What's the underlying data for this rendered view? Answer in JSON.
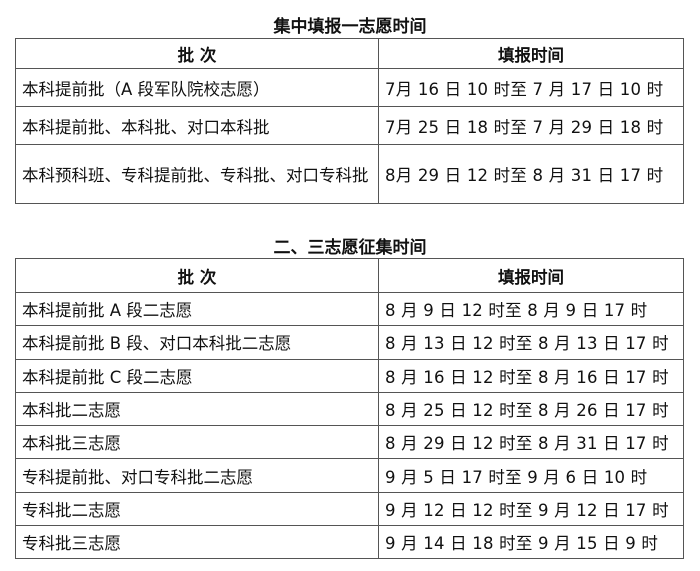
{
  "section1": {
    "title": "集中填报一志愿时间",
    "headers": [
      "批 次",
      "填报时间"
    ],
    "rows": [
      {
        "batch": "本科提前批（A 段军队院校志愿）",
        "time": "7月 16 日 10 时至 7 月 17 日 10 时"
      },
      {
        "batch": "本科提前批、本科批、对口本科批",
        "time": "7月 25 日 18 时至 7 月 29 日 18 时"
      },
      {
        "batch": "本科预科班、专科提前批、专科批、对口专科批",
        "time": "8月 29 日 12 时至 8 月 31 日 17 时"
      }
    ]
  },
  "section2": {
    "title": "二、三志愿征集时间",
    "headers": [
      "批 次",
      "填报时间"
    ],
    "rows": [
      {
        "batch": "本科提前批 A 段二志愿",
        "time": "8 月 9 日 12 时至 8 月 9 日 17 时"
      },
      {
        "batch": "本科提前批 B 段、对口本科批二志愿",
        "time": "8 月 13 日 12 时至 8 月 13 日 17 时"
      },
      {
        "batch": "本科提前批 C 段二志愿",
        "time": "8 月 16 日 12 时至 8 月 16 日 17 时"
      },
      {
        "batch": "本科批二志愿",
        "time": "8 月 25 日 12 时至 8 月 26 日 17 时"
      },
      {
        "batch": "本科批三志愿",
        "time": "8 月 29 日 12 时至 8 月 31 日 17 时"
      },
      {
        "batch": "专科提前批、对口专科批二志愿",
        "time": "9 月 5 日 17 时至 9 月 6 日 10 时"
      },
      {
        "batch": "专科批二志愿",
        "time": "9 月 12 日 12 时至 9 月 12 日 17 时"
      },
      {
        "batch": "专科批三志愿",
        "time": "9 月 14 日 18 时至 9 月 15 日 9 时"
      }
    ]
  }
}
